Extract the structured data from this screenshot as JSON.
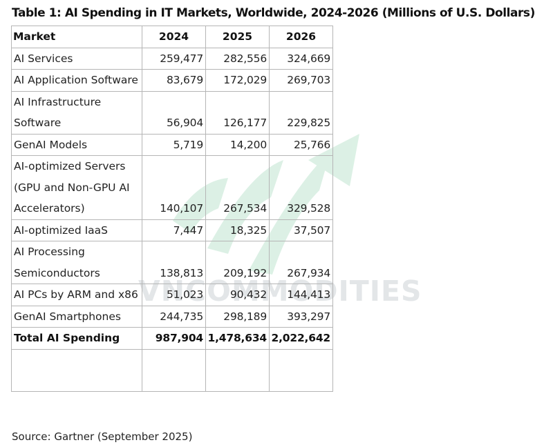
{
  "title": "Table 1: AI Spending in IT Markets, Worldwide, 2024-2026 (Millions of U.S. Dollars)",
  "table": {
    "headers": [
      "Market",
      "2024",
      "2025",
      "2026"
    ],
    "rows": [
      {
        "market": "AI Services",
        "y2024": "259,477",
        "y2025": "282,556",
        "y2026": "324,669"
      },
      {
        "market": "AI Application Software",
        "y2024": "83,679",
        "y2025": "172,029",
        "y2026": "269,703"
      },
      {
        "market": "AI Infrastructure Software",
        "y2024": "56,904",
        "y2025": "126,177",
        "y2026": "229,825"
      },
      {
        "market": "GenAI Models",
        "y2024": "5,719",
        "y2025": "14,200",
        "y2026": "25,766"
      },
      {
        "market": "AI-optimized Servers (GPU and Non-GPU AI Accelerators)",
        "y2024": "140,107",
        "y2025": "267,534",
        "y2026": "329,528"
      },
      {
        "market": "AI-optimized IaaS",
        "y2024": "7,447",
        "y2025": "18,325",
        "y2026": "37,507"
      },
      {
        "market": "AI Processing Semiconductors",
        "y2024": "138,813",
        "y2025": "209,192",
        "y2026": "267,934"
      },
      {
        "market": "AI PCs by ARM and x86",
        "y2024": "51,023",
        "y2025": "90,432",
        "y2026": "144,413"
      },
      {
        "market": "GenAI Smartphones",
        "y2024": "244,735",
        "y2025": "298,189",
        "y2026": "393,297"
      }
    ],
    "total": {
      "market": "Total AI Spending",
      "y2024": "987,904",
      "y2025": "1,478,634",
      "y2026": "2,022,642"
    }
  },
  "watermark": {
    "text": "VNCOMMODITIES",
    "color": "#e3e6e8",
    "arrow_color": "#d9efe4"
  },
  "source": "Source: Gartner (September 2025)"
}
